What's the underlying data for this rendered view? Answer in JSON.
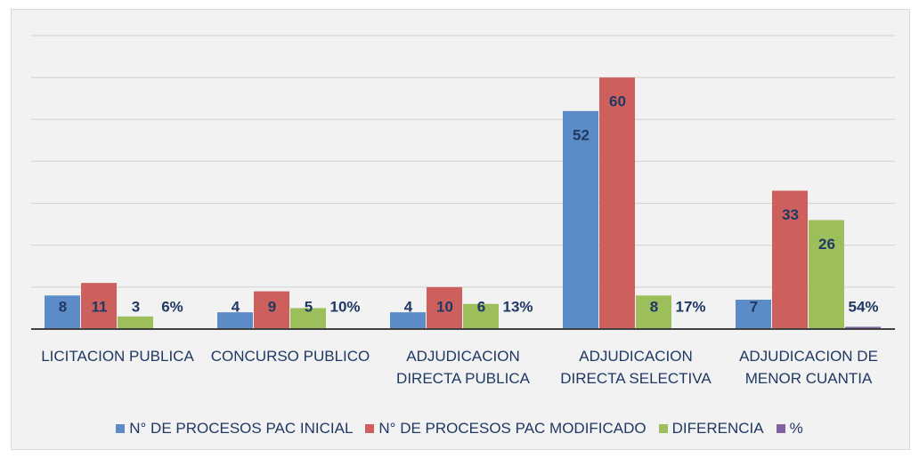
{
  "chart_data": {
    "type": "bar",
    "categories": [
      "LICITACION PUBLICA",
      "CONCURSO PUBLICO",
      "ADJUDICACION DIRECTA PUBLICA",
      "ADJUDICACION DIRECTA SELECTIVA",
      "ADJUDICACION DE MENOR CUANTIA"
    ],
    "series": [
      {
        "name": "N° DE PROCESOS PAC INICIAL",
        "color": "#5b8cc8",
        "values": [
          8,
          4,
          4,
          52,
          7
        ]
      },
      {
        "name": "N° DE PROCESOS PAC MODIFICADO",
        "color": "#cd605d",
        "values": [
          11,
          9,
          10,
          60,
          33
        ]
      },
      {
        "name": "DIFERENCIA",
        "color": "#9cbf5c",
        "values": [
          3,
          5,
          6,
          8,
          26
        ]
      },
      {
        "name": "%",
        "color": "#8064a2",
        "values": [
          0.06,
          0.1,
          0.13,
          0.17,
          0.54
        ],
        "value_labels": [
          "6%",
          "10%",
          "13%",
          "17%",
          "54%"
        ]
      }
    ],
    "ylim": [
      0,
      70
    ],
    "yticks": [
      0,
      10,
      20,
      30,
      40,
      50,
      60,
      70
    ],
    "grid": true,
    "legend": "bottom"
  }
}
